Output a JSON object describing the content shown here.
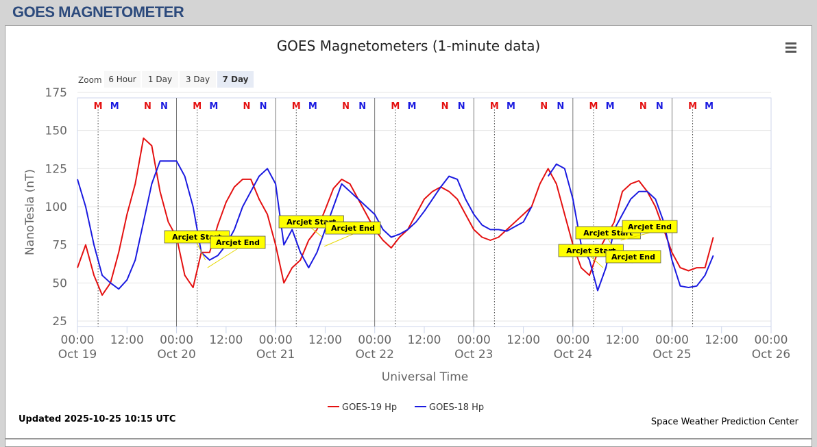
{
  "header": {
    "title": "GOES MAGNETOMETER"
  },
  "chart_data": {
    "type": "line",
    "title": "GOES Magnetometers (1-minute data)",
    "zoom_label": "Zoom",
    "zoom_buttons": [
      "6 Hour",
      "1 Day",
      "3 Day",
      "7 Day"
    ],
    "zoom_selected": 3,
    "y_label": "NanoTesla (nT)",
    "x_label": "Universal Time",
    "updated": "Updated 2025-10-25 10:15 UTC",
    "credit": "Space Weather Prediction Center",
    "ylim": [
      25,
      175
    ],
    "yticks": [
      25,
      50,
      75,
      100,
      125,
      150,
      175
    ],
    "xlim": [
      0,
      168
    ],
    "xticks": [
      {
        "value": 0,
        "label": "00:00",
        "date": "Oct 19"
      },
      {
        "value": 12,
        "label": "12:00"
      },
      {
        "value": 24,
        "label": "00:00",
        "date": "Oct 20"
      },
      {
        "value": 36,
        "label": "12:00"
      },
      {
        "value": 48,
        "label": "00:00",
        "date": "Oct 21"
      },
      {
        "value": 60,
        "label": "12:00"
      },
      {
        "value": 72,
        "label": "00:00",
        "date": "Oct 22"
      },
      {
        "value": 84,
        "label": "12:00"
      },
      {
        "value": 96,
        "label": "00:00",
        "date": "Oct 23"
      },
      {
        "value": 108,
        "label": "12:00"
      },
      {
        "value": 120,
        "label": "00:00",
        "date": "Oct 24"
      },
      {
        "value": 132,
        "label": "12:00"
      },
      {
        "value": 144,
        "label": "00:00",
        "date": "Oct 25"
      },
      {
        "value": 156,
        "label": "12:00"
      },
      {
        "value": 168,
        "label": "00:00",
        "date": "Oct 26"
      }
    ],
    "grid": true,
    "x": [
      0,
      2,
      4,
      6,
      8,
      10,
      12,
      14,
      16,
      18,
      20,
      22,
      24,
      26,
      28,
      30,
      32,
      34,
      36,
      38,
      40,
      42,
      44,
      46,
      48,
      50,
      52,
      54,
      56,
      58,
      60,
      62,
      64,
      66,
      68,
      70,
      72,
      74,
      76,
      78,
      80,
      82,
      84,
      86,
      88,
      90,
      92,
      94,
      96,
      98,
      100,
      102,
      104,
      106,
      108,
      110,
      112,
      114,
      116,
      118,
      120,
      122,
      124,
      126,
      128,
      130,
      132,
      134,
      136,
      138,
      140,
      142,
      144,
      146,
      148,
      150,
      152,
      154
    ],
    "series": [
      {
        "name": "GOES-19 Hp",
        "color": "#e41010",
        "values": [
          60,
          75,
          55,
          42,
          50,
          70,
          95,
          115,
          145,
          140,
          110,
          90,
          80,
          55,
          47,
          70,
          70,
          88,
          103,
          113,
          118,
          118,
          105,
          95,
          75,
          50,
          60,
          65,
          78,
          85,
          98,
          112,
          118,
          115,
          105,
          95,
          85,
          78,
          73,
          80,
          85,
          95,
          105,
          110,
          113,
          110,
          105,
          95,
          85,
          80,
          78,
          80,
          85,
          90,
          95,
          100,
          115,
          125,
          115,
          95,
          75,
          60,
          55,
          70,
          80,
          90,
          110,
          115,
          117,
          110,
          100,
          85,
          70,
          60,
          58,
          60,
          60,
          80
        ]
      },
      {
        "name": "GOES-18 Hp",
        "color": "#1a1ae0",
        "values": [
          118,
          100,
          75,
          55,
          50,
          46,
          52,
          65,
          90,
          115,
          130,
          130,
          130,
          120,
          100,
          70,
          65,
          68,
          75,
          85,
          100,
          110,
          120,
          125,
          115,
          75,
          85,
          70,
          60,
          70,
          85,
          100,
          115,
          110,
          105,
          100,
          95,
          85,
          80,
          82,
          85,
          90,
          97,
          105,
          113,
          120,
          118,
          105,
          95,
          88,
          85,
          85,
          84,
          87,
          90,
          100,
          null,
          120,
          128,
          125,
          105,
          75,
          65,
          45,
          60,
          85,
          95,
          105,
          110,
          110,
          105,
          90,
          65,
          48,
          47,
          48,
          55,
          68
        ]
      }
    ],
    "flags": [
      {
        "label": "M",
        "color": "#e41010",
        "x": [
          5,
          29,
          53,
          77,
          101,
          125,
          149
        ],
        "dotted": true
      },
      {
        "label": "M",
        "color": "#1a1ae0",
        "x": [
          9,
          33,
          57,
          81,
          105,
          129,
          153
        ]
      },
      {
        "label": "N",
        "color": "#e41010",
        "x": [
          17,
          41,
          65,
          89,
          113,
          137
        ]
      },
      {
        "label": "N",
        "color": "#1a1ae0",
        "x": [
          21,
          45,
          69,
          93,
          117,
          141
        ]
      }
    ],
    "annotations": [
      {
        "label": "Arcjet Start",
        "x": 31,
        "y": 65
      },
      {
        "label": "Arcjet End",
        "x": 31.5,
        "y": 60
      },
      {
        "label": "Arcjet Start",
        "x": 59.3,
        "y": 80
      },
      {
        "label": "Arcjet End",
        "x": 59.8,
        "y": 74
      },
      {
        "label": "Arcjet Start",
        "x": 130,
        "y": 72
      },
      {
        "label": "Arcjet End",
        "x": 131.6,
        "y": 78
      },
      {
        "label": "Arcjet Start",
        "x": 127.3,
        "y": 60
      },
      {
        "label": "Arcjet End",
        "x": 128,
        "y": 65
      }
    ],
    "legend": "bottom"
  }
}
